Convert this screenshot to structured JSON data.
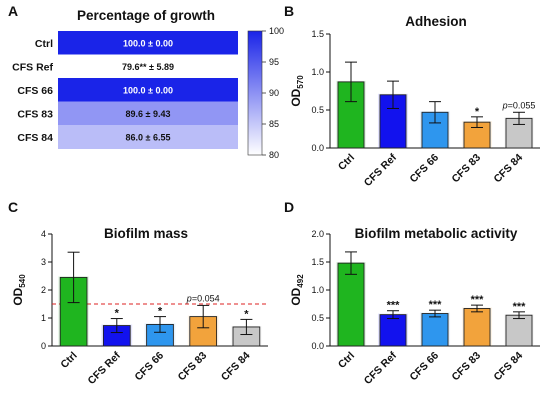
{
  "panels": [
    {
      "letter": "A",
      "chart_data": {
        "type": "heatmap",
        "title": "Percentage of growth",
        "rows": [
          "Ctrl",
          "CFS Ref",
          "CFS 66",
          "CFS 83",
          "CFS 84"
        ],
        "values": [
          100.0,
          79.6,
          100.0,
          89.6,
          86.0
        ],
        "cell_labels": [
          "100.0 ± 0.00",
          "79.6** ± 5.89",
          "100.0 ± 0.00",
          "89.6 ± 9.43",
          "86.0 ± 6.55"
        ],
        "colorbar": {
          "min": 80,
          "max": 100,
          "ticks": [
            "100",
            "95",
            "90",
            "85",
            "80"
          ],
          "low_color": "#ffffff",
          "high_color": "#1a24e8"
        }
      }
    },
    {
      "letter": "B",
      "chart_data": {
        "type": "bar",
        "title": "Adhesion",
        "ylabel": "OD",
        "ylabel_sub": "570",
        "ylim": [
          0,
          1.5
        ],
        "yticks": [
          "0.0",
          "0.5",
          "1.0",
          "1.5"
        ],
        "ytick_values": [
          0,
          0.5,
          1.0,
          1.5
        ],
        "categories": [
          "Ctrl",
          "CFS Ref",
          "CFS 66",
          "CFS 83",
          "CFS 84"
        ],
        "values": [
          0.87,
          0.7,
          0.47,
          0.34,
          0.39
        ],
        "errors": [
          0.26,
          0.18,
          0.14,
          0.07,
          0.08
        ],
        "annotations": [
          "",
          "",
          "",
          "*",
          "p=0.055"
        ],
        "colors": [
          "#1fb51f",
          "#1212ee",
          "#2e96ee",
          "#f2a33c",
          "#c8c8c8"
        ]
      }
    },
    {
      "letter": "C",
      "chart_data": {
        "type": "bar",
        "title": "Biofilm mass",
        "ylabel": "OD",
        "ylabel_sub": "540",
        "ylim": [
          0,
          4
        ],
        "yticks": [
          "0",
          "1",
          "2",
          "3",
          "4"
        ],
        "ytick_values": [
          0,
          1,
          2,
          3,
          4
        ],
        "categories": [
          "Ctrl",
          "CFS Ref",
          "CFS 66",
          "CFS 83",
          "CFS 84"
        ],
        "values": [
          2.45,
          0.73,
          0.77,
          1.05,
          0.68
        ],
        "errors": [
          0.9,
          0.25,
          0.28,
          0.4,
          0.27
        ],
        "annotations": [
          "",
          "*",
          "*",
          "p=0.054",
          "*"
        ],
        "threshold": 1.5,
        "colors": [
          "#1fb51f",
          "#1212ee",
          "#2e96ee",
          "#f2a33c",
          "#c8c8c8"
        ]
      }
    },
    {
      "letter": "D",
      "chart_data": {
        "type": "bar",
        "title": "Biofilm metabolic activity",
        "ylabel": "OD",
        "ylabel_sub": "492",
        "ylim": [
          0,
          2.0
        ],
        "yticks": [
          "0.0",
          "0.5",
          "1.0",
          "1.5",
          "2.0"
        ],
        "ytick_values": [
          0,
          0.5,
          1.0,
          1.5,
          2.0
        ],
        "categories": [
          "Ctrl",
          "CFS Ref",
          "CFS 66",
          "CFS 83",
          "CFS 84"
        ],
        "values": [
          1.48,
          0.56,
          0.58,
          0.67,
          0.55
        ],
        "errors": [
          0.2,
          0.07,
          0.06,
          0.06,
          0.06
        ],
        "annotations": [
          "",
          "***",
          "***",
          "***",
          "***"
        ],
        "colors": [
          "#1fb51f",
          "#1212ee",
          "#2e96ee",
          "#f2a33c",
          "#c8c8c8"
        ]
      }
    }
  ]
}
